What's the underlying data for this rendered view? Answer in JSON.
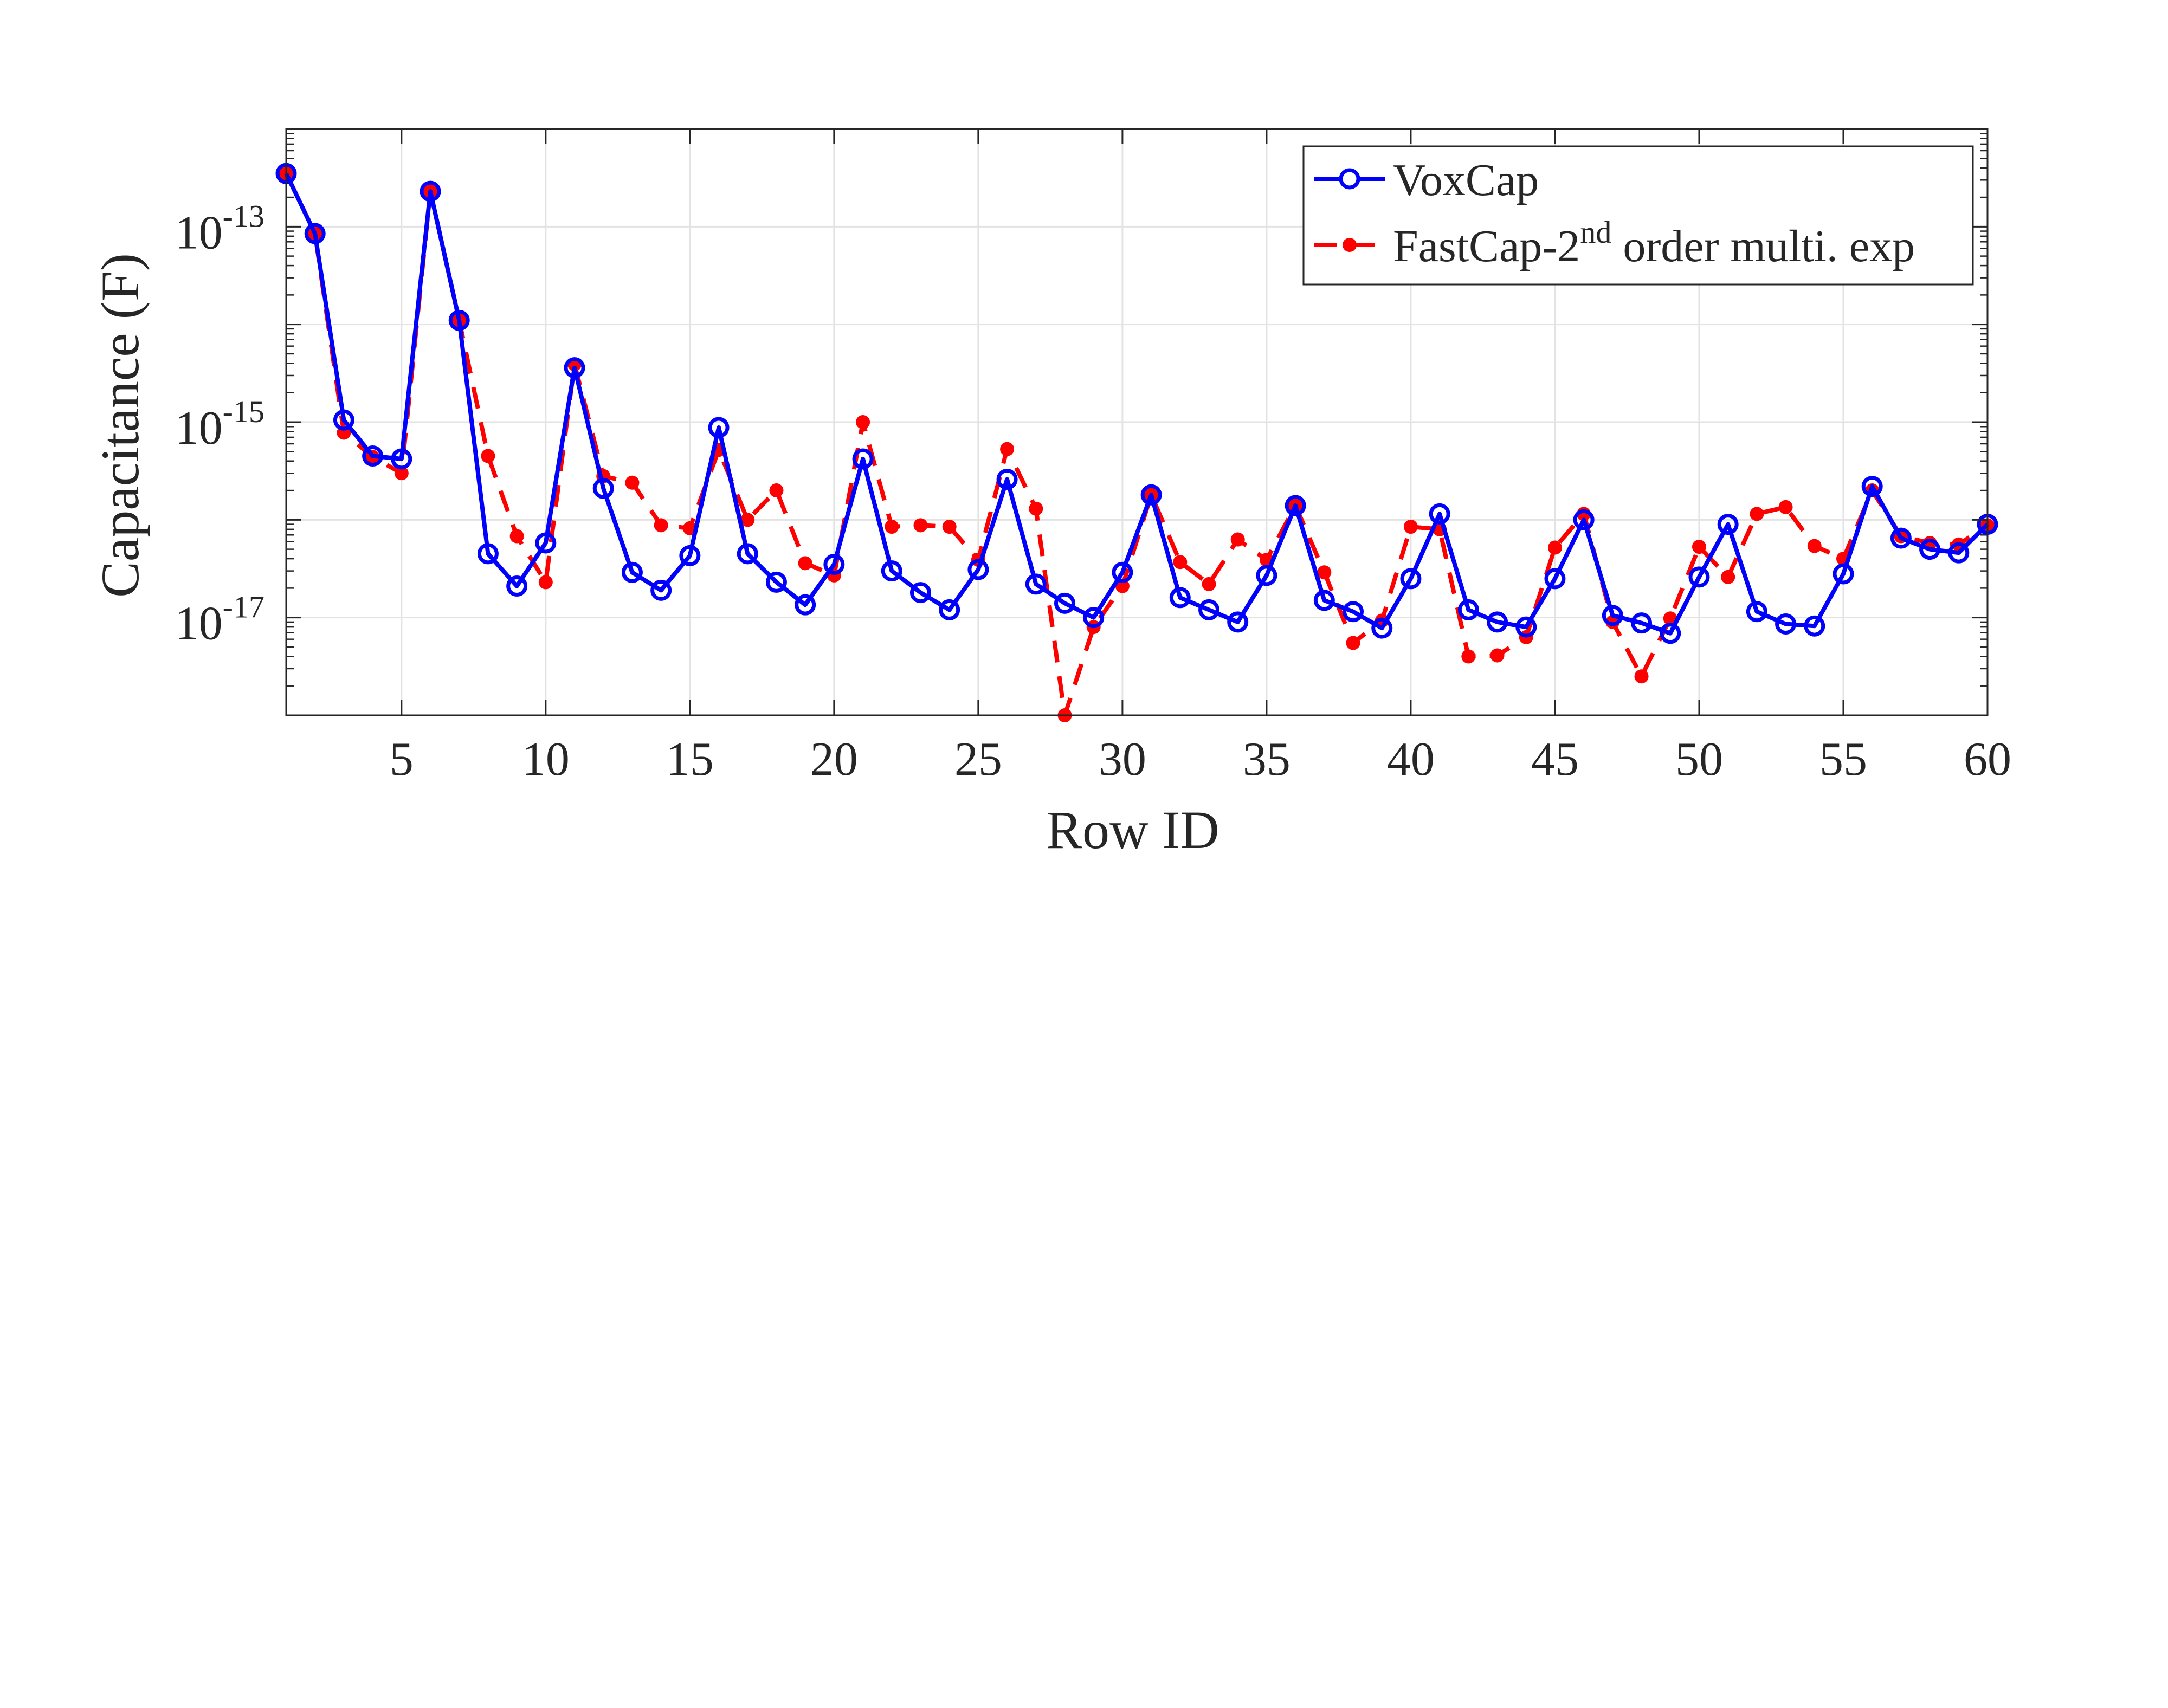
{
  "chart_data": {
    "type": "line",
    "xlabel": "Row ID",
    "ylabel": "Capacitance (F)",
    "yscale": "log",
    "xlim": [
      1,
      60
    ],
    "ylim": [
      1e-18,
      1e-12
    ],
    "xticks": [
      5,
      10,
      15,
      20,
      25,
      30,
      35,
      40,
      45,
      50,
      55,
      60
    ],
    "xtick_labels": [
      "5",
      "10",
      "15",
      "20",
      "25",
      "30",
      "35",
      "40",
      "45",
      "50",
      "55",
      "60"
    ],
    "yticks": [
      1e-13,
      1e-15,
      1e-17
    ],
    "ytick_labels": [
      {
        "base": "10",
        "exp": "-13"
      },
      {
        "base": "10",
        "exp": "-15"
      },
      {
        "base": "10",
        "exp": "-17"
      }
    ],
    "grid": true,
    "legend_position": "top-right",
    "x": [
      1,
      2,
      3,
      4,
      5,
      6,
      7,
      8,
      9,
      10,
      11,
      12,
      13,
      14,
      15,
      16,
      17,
      18,
      19,
      20,
      21,
      22,
      23,
      24,
      25,
      26,
      27,
      28,
      29,
      30,
      31,
      32,
      33,
      34,
      35,
      36,
      37,
      38,
      39,
      40,
      41,
      42,
      43,
      44,
      45,
      46,
      47,
      48,
      49,
      50,
      51,
      52,
      53,
      54,
      55,
      56,
      57,
      58,
      59,
      60
    ],
    "series": [
      {
        "name": "VoxCap",
        "color": "#0000ff",
        "line_style": "solid",
        "marker": "open-circle",
        "values": [
          3.5e-13,
          8.5e-14,
          1.05e-15,
          4.5e-16,
          4.2e-16,
          2.3e-13,
          1.1e-14,
          4.5e-17,
          2.1e-17,
          5.8e-17,
          3.6e-15,
          2.1e-16,
          2.9e-17,
          1.9e-17,
          4.3e-17,
          8.8e-16,
          4.5e-17,
          2.3e-17,
          1.35e-17,
          3.5e-17,
          4.2e-16,
          3e-17,
          1.8e-17,
          1.2e-17,
          3.1e-17,
          2.6e-16,
          2.2e-17,
          1.4e-17,
          1e-17,
          2.9e-17,
          1.8e-16,
          1.6e-17,
          1.2e-17,
          9e-18,
          2.7e-17,
          1.4e-16,
          1.5e-17,
          1.15e-17,
          7.8e-18,
          2.5e-17,
          1.15e-16,
          1.2e-17,
          9e-18,
          8e-18,
          2.5e-17,
          1e-16,
          1.05e-17,
          8.8e-18,
          6.9e-18,
          2.6e-17,
          9e-17,
          1.15e-17,
          8.6e-18,
          8.2e-18,
          2.8e-17,
          2.2e-16,
          6.5e-17,
          5e-17,
          4.6e-17,
          9e-17
        ]
      },
      {
        "name": "FastCap-2nd order multi. exp",
        "name_parts": {
          "prefix": "FastCap-2",
          "sup": "nd",
          "suffix": " order multi. exp"
        },
        "color": "#ff0000",
        "line_style": "dashed",
        "marker": "filled-dot",
        "values": [
          3.5e-13,
          8.5e-14,
          7.8e-16,
          4.4e-16,
          3e-16,
          2.3e-13,
          1.1e-14,
          4.5e-16,
          6.8e-17,
          2.3e-17,
          3.9e-15,
          2.8e-16,
          2.4e-16,
          8.8e-17,
          8.2e-17,
          5.2e-16,
          1e-16,
          2e-16,
          3.6e-17,
          2.7e-17,
          1e-15,
          8.5e-17,
          8.8e-17,
          8.5e-17,
          3.9e-17,
          5.3e-16,
          1.3e-16,
          1e-18,
          8e-18,
          2.1e-17,
          1.8e-16,
          3.7e-17,
          2.2e-17,
          6.3e-17,
          3.9e-17,
          1.4e-16,
          2.9e-17,
          5.5e-18,
          9.3e-18,
          8.5e-17,
          8e-17,
          4e-18,
          4.1e-18,
          6.3e-18,
          5.2e-17,
          1.15e-16,
          9e-18,
          2.5e-18,
          9.8e-18,
          5.3e-17,
          2.6e-17,
          1.15e-16,
          1.35e-16,
          5.4e-17,
          4e-17,
          2e-16,
          6.8e-17,
          5.8e-17,
          5.6e-17,
          8.8e-17
        ]
      }
    ]
  }
}
